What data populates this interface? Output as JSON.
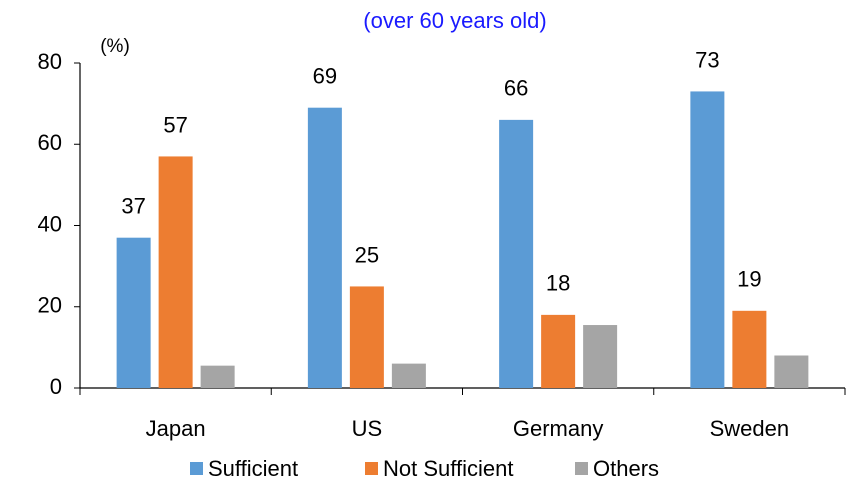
{
  "chart_data": {
    "type": "bar",
    "subtitle": "(over 60 years old)",
    "y_label": "(%)",
    "categories": [
      "Japan",
      "US",
      "Germany",
      "Sweden"
    ],
    "series": [
      {
        "name": "Sufficient",
        "color": "#5b9bd5",
        "values": [
          37,
          69,
          66,
          73
        ],
        "data_labels": true
      },
      {
        "name": "Not Sufficient",
        "color": "#ed7d31",
        "values": [
          57,
          25,
          18,
          19
        ],
        "data_labels": true
      },
      {
        "name": "Others",
        "color": "#a5a5a5",
        "values": [
          5.5,
          6,
          15.5,
          8
        ],
        "data_labels": false
      }
    ],
    "ylim": [
      0,
      80
    ],
    "yticks": [
      0,
      20,
      40,
      60,
      80
    ],
    "grid": false,
    "legend": "bottom"
  }
}
